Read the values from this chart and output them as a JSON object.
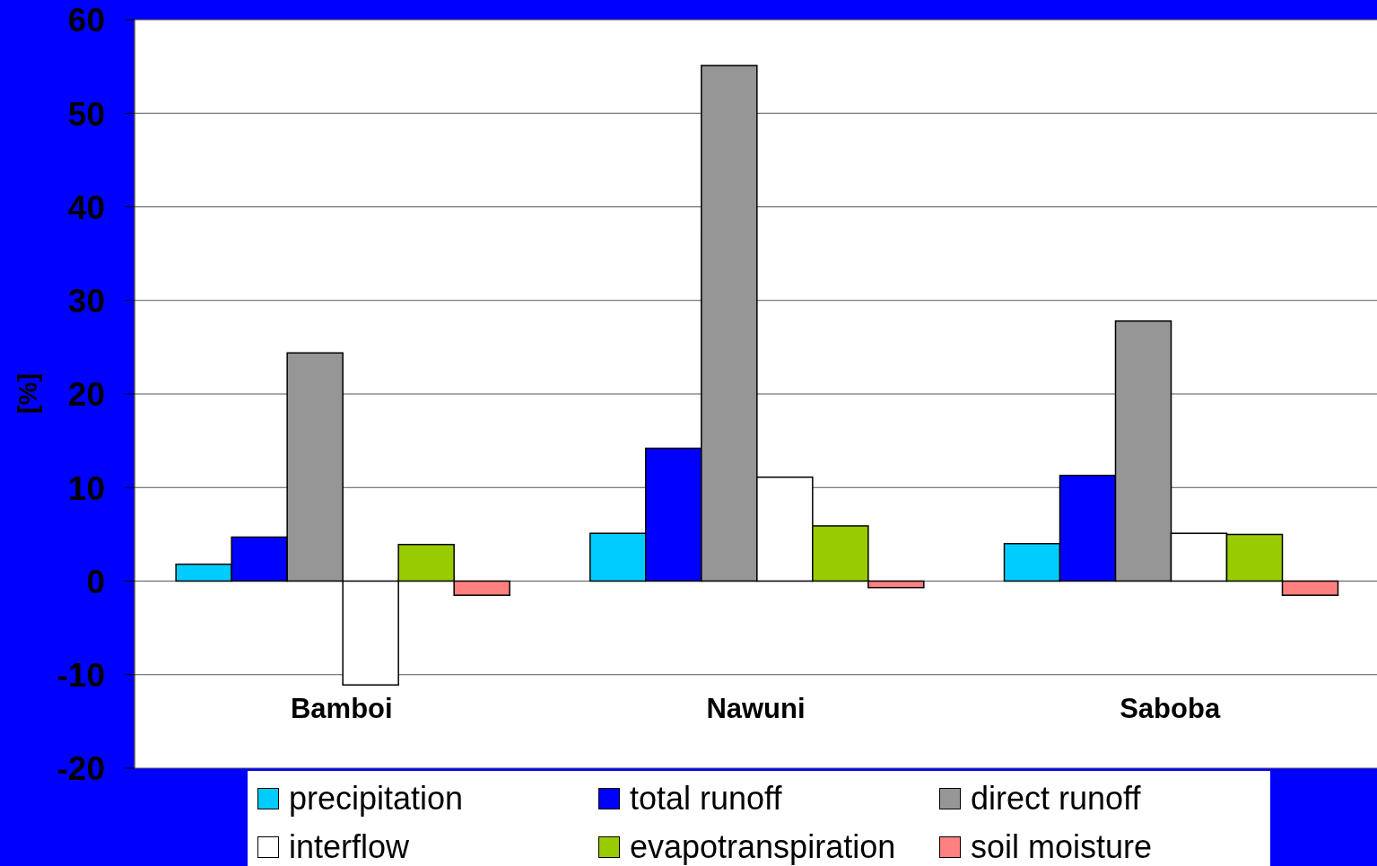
{
  "chart_data": {
    "type": "bar",
    "categories": [
      "Bamboi",
      "Nawuni",
      "Saboba"
    ],
    "ylabel": "[%]",
    "series": [
      {
        "name": "precipitation",
        "color": "#00ccff",
        "values": [
          1.8,
          5.1,
          4.0
        ]
      },
      {
        "name": "total runoff",
        "color": "#0000ff",
        "values": [
          4.7,
          14.2,
          11.3
        ]
      },
      {
        "name": "direct runoff",
        "color": "#969696",
        "values": [
          24.4,
          55.1,
          27.8
        ]
      },
      {
        "name": "interflow",
        "color": "#ffffff",
        "values": [
          -11.1,
          11.1,
          5.1
        ]
      },
      {
        "name": "evapotranspiration",
        "color": "#99cc00",
        "values": [
          3.9,
          5.9,
          5.0
        ]
      },
      {
        "name": "soil moisture",
        "color": "#ff8080",
        "values": [
          -1.5,
          -0.7,
          -1.5
        ]
      }
    ],
    "ylim": [
      -20,
      60
    ],
    "yticks": [
      -20,
      -10,
      0,
      10,
      20,
      30,
      40,
      50,
      60
    ],
    "grid": "y",
    "legend": "bottom"
  }
}
